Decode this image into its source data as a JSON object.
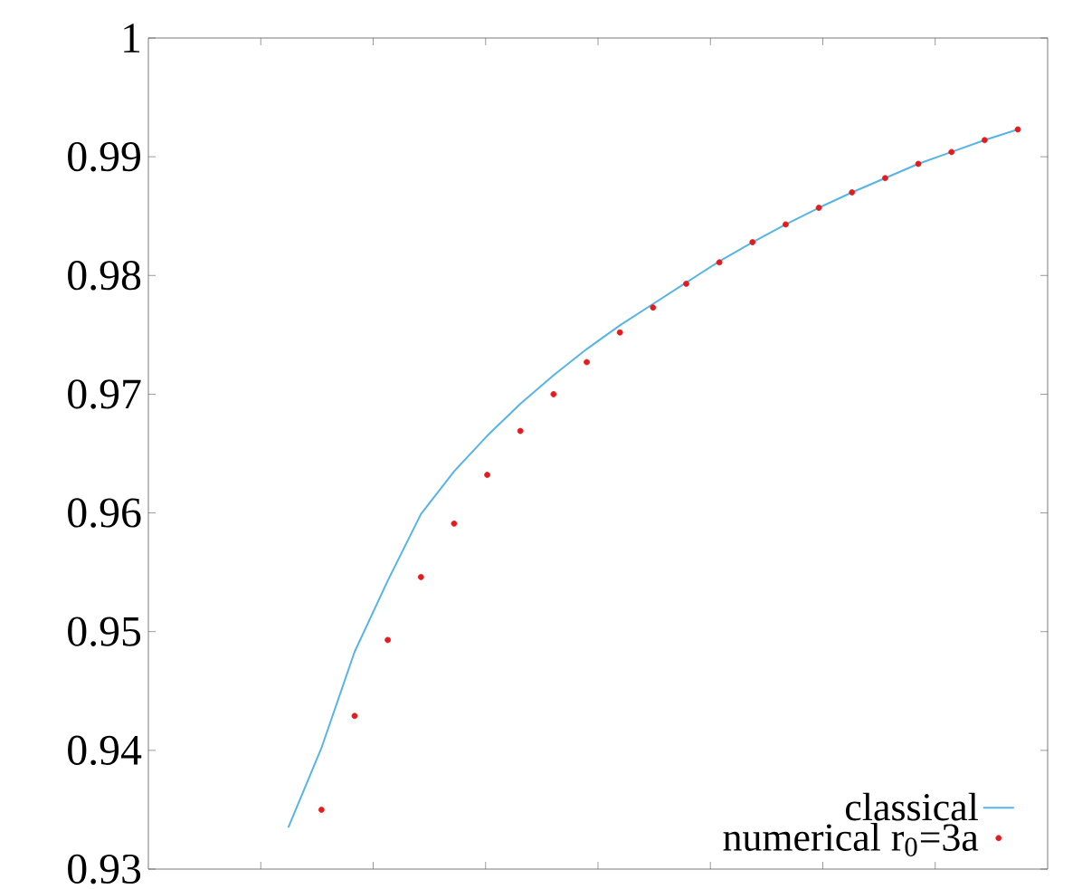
{
  "chart_data": {
    "type": "line",
    "ylim": [
      0.93,
      1
    ],
    "categories": [
      null,
      null,
      null,
      null,
      null,
      null,
      null,
      null,
      null,
      null,
      null,
      null,
      null,
      null,
      null,
      null,
      null,
      null,
      null,
      null,
      null,
      null,
      null
    ],
    "yticks": [
      0.93,
      0.94,
      0.95,
      0.96,
      0.97,
      0.98,
      0.99,
      1
    ],
    "tick_labels": "y",
    "legend": "bottom right",
    "series": [
      {
        "name": "classical",
        "type": "line",
        "color": "#56b4e9",
        "marker": "none",
        "line_style": "solid",
        "values": [
          0.9335,
          0.9402,
          0.9483,
          0.9543,
          0.9599,
          0.9635,
          0.9665,
          0.9692,
          0.9716,
          0.9738,
          0.9758,
          0.9776,
          0.9794,
          0.9812,
          0.9828,
          0.9843,
          0.9857,
          0.987,
          0.9882,
          0.9894,
          0.9904,
          0.9914,
          0.9923
        ]
      },
      {
        "name": "numerical r$_{0}$=3a",
        "type": "scatter",
        "color": "#e41a1c",
        "marker": "circle",
        "values": [
          null,
          0.935,
          0.9429,
          0.9493,
          0.9546,
          0.9591,
          0.9632,
          0.9669,
          0.97,
          0.9727,
          0.9752,
          0.9773,
          0.9793,
          0.9811,
          0.9828,
          0.9843,
          0.9857,
          0.987,
          0.9882,
          0.9894,
          0.9904,
          0.9914,
          0.9923
        ]
      }
    ]
  }
}
